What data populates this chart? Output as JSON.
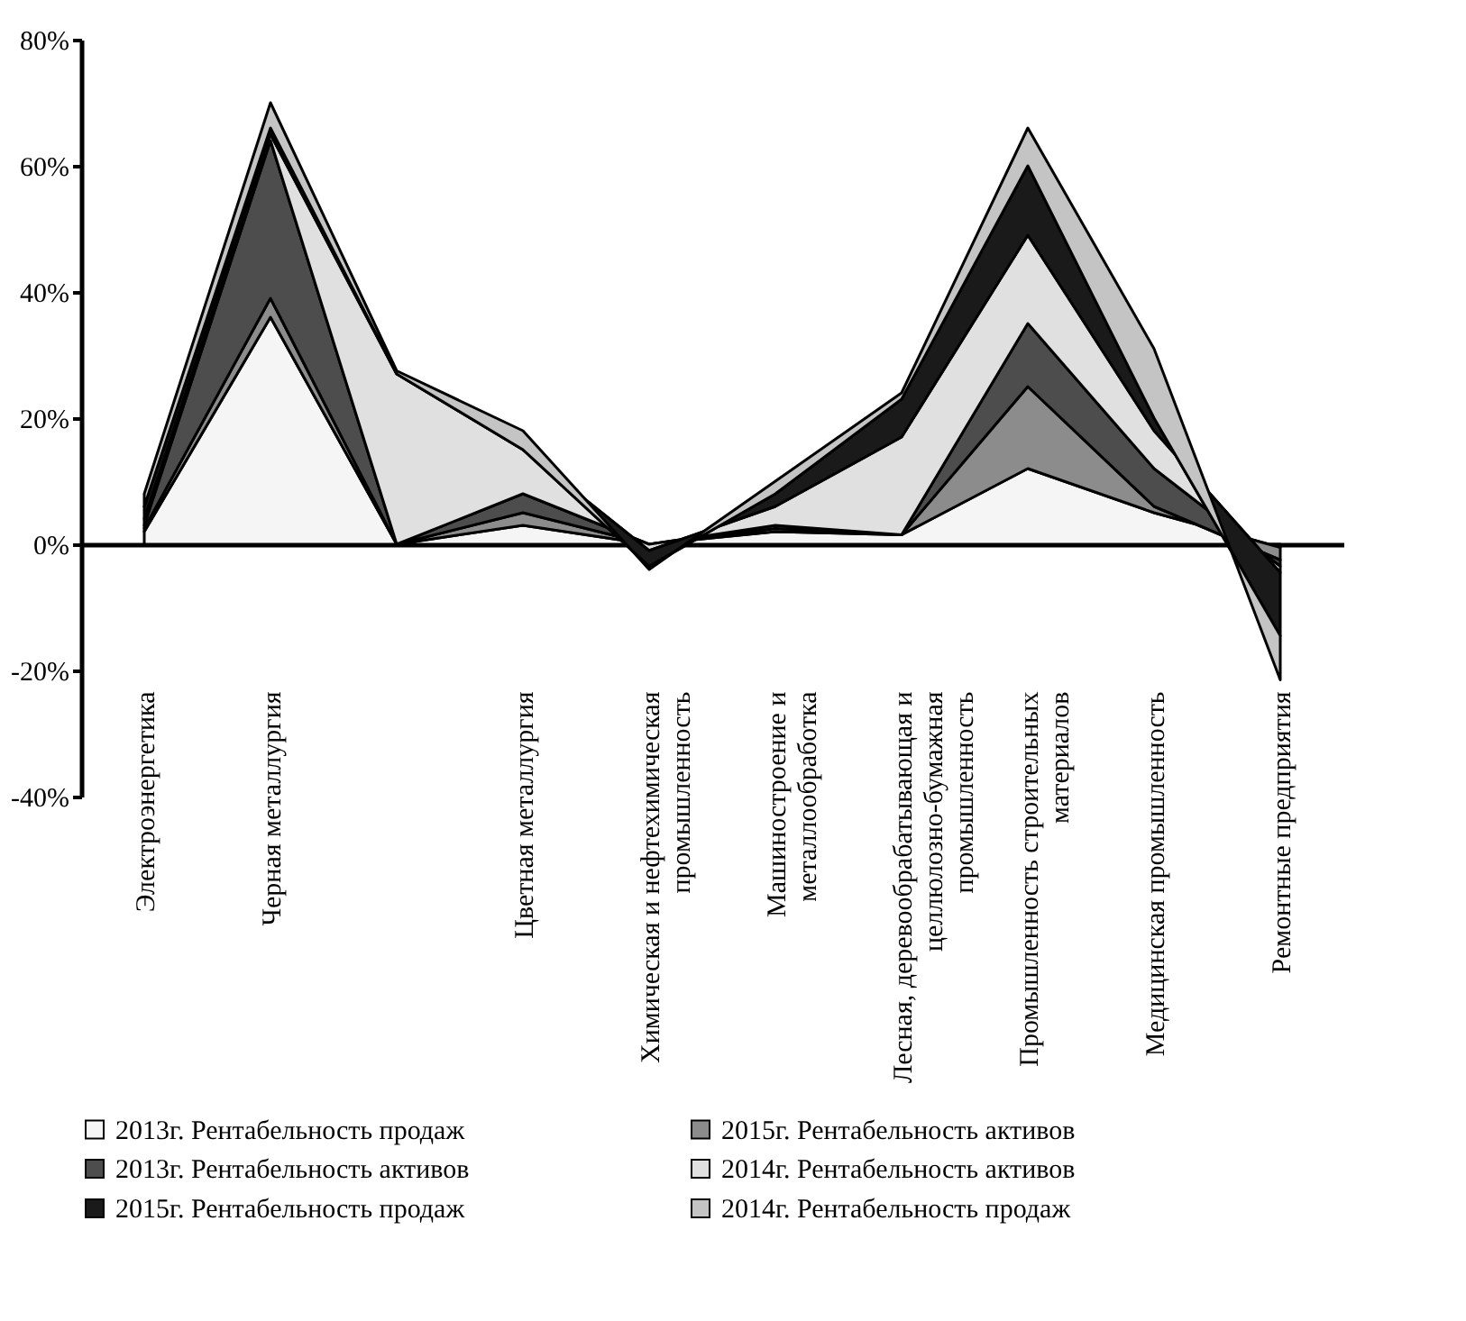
{
  "chart_data": {
    "type": "area",
    "stacked": true,
    "categories": [
      "Электроэнергетика",
      "Черная металлургия",
      null,
      "Цветная металлургия",
      "Химическая и нефтехимическая промышленность",
      "Машиностроение и металлообработка",
      "Лесная, деревообрабатывающая и целлюлозно-бумажная промышленность",
      "Промышленность строительных материалов",
      "Медицинская промышленность",
      "Ремонтные предприятия"
    ],
    "series": [
      {
        "name": "2013г. Рентабельность продаж",
        "color": "#f5f5f5",
        "values": [
          2,
          36,
          0,
          3,
          0,
          2,
          1.5,
          12,
          5,
          -0.5
        ]
      },
      {
        "name": "2015г. Рентабельность активов",
        "color": "#8c8c8c",
        "values": [
          0.5,
          3,
          0,
          2,
          0,
          0.5,
          0,
          13,
          1,
          -2
        ]
      },
      {
        "name": "2013г. Рентабельность активов",
        "color": "#4d4d4d",
        "values": [
          0.5,
          25,
          0,
          3,
          0,
          0.5,
          0,
          10,
          6,
          -1
        ]
      },
      {
        "name": "2014г. Рентабельность активов",
        "color": "#e0e0e0",
        "values": [
          1,
          1,
          27,
          7,
          -1,
          3,
          15.5,
          14,
          6,
          -1
        ]
      },
      {
        "name": "2015г. Рентабельность продаж",
        "color": "#1a1a1a",
        "values": [
          2,
          1,
          0,
          0,
          -2.5,
          2,
          6,
          11,
          2,
          -10
        ]
      },
      {
        "name": "2014г. Рентабельность продаж",
        "color": "#c4c4c4",
        "values": [
          2,
          4,
          0.5,
          3,
          -0.5,
          2,
          1,
          6,
          11,
          -7
        ]
      }
    ],
    "ylim": [
      -40,
      80
    ],
    "yticks": [
      {
        "value": -40,
        "label": "-40%"
      },
      {
        "value": -20,
        "label": "-20%"
      },
      {
        "value": 0,
        "label": "0%"
      },
      {
        "value": 20,
        "label": "20%"
      },
      {
        "value": 40,
        "label": "40%"
      },
      {
        "value": 60,
        "label": "60%"
      },
      {
        "value": 80,
        "label": "80%"
      }
    ],
    "legend": "bottom"
  }
}
